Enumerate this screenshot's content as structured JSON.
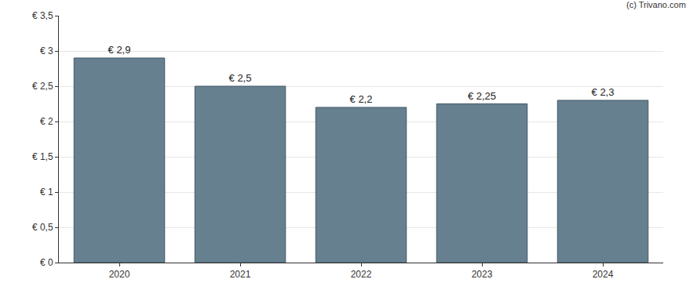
{
  "chart_data": {
    "type": "bar",
    "categories": [
      "2020",
      "2021",
      "2022",
      "2023",
      "2024"
    ],
    "values": [
      2.9,
      2.5,
      2.2,
      2.25,
      2.3
    ],
    "value_labels": [
      "€ 2,9",
      "€ 2,5",
      "€ 2,2",
      "€ 2,25",
      "€ 2,3"
    ],
    "data_labels": true,
    "color": "#66808f",
    "ylim": [
      0,
      3.5
    ],
    "yticks": [
      {
        "value": 0,
        "label": "€ 0"
      },
      {
        "value": 0.5,
        "label": "€ 0,5"
      },
      {
        "value": 1,
        "label": "€ 1"
      },
      {
        "value": 1.5,
        "label": "€ 1,5"
      },
      {
        "value": 2,
        "label": "€ 2"
      },
      {
        "value": 2.5,
        "label": "€ 2,5"
      },
      {
        "value": 3,
        "label": "€ 3"
      },
      {
        "value": 3.5,
        "label": "€ 3,5"
      }
    ],
    "grid": true,
    "annotations": [
      {
        "text": "(c) Trivano.com"
      }
    ]
  }
}
